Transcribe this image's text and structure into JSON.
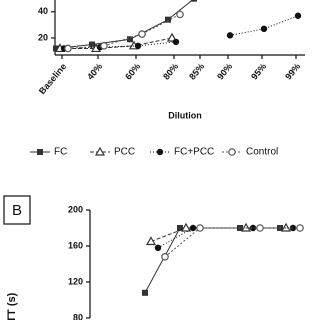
{
  "chart_data": [
    {
      "type": "line",
      "x_label": "Dilution",
      "categories": [
        "Baseline",
        "40%",
        "60%",
        "80%",
        "85%",
        "90%",
        "95%",
        "99%"
      ],
      "ylim": [
        7,
        49
      ],
      "yticks": [
        20,
        40
      ],
      "series": [
        {
          "name": "FC",
          "color": "#333333",
          "marker": "square",
          "dash": "none",
          "values": [
            12,
            15,
            19,
            34,
            50,
            null,
            null,
            null
          ]
        },
        {
          "name": "PCC",
          "color": "#333333",
          "marker": "triangle",
          "dash": "4 2",
          "values": [
            12,
            12,
            14,
            20,
            null,
            null,
            null,
            null
          ]
        },
        {
          "name": "FC+PCC",
          "color": "#111111",
          "marker": "filled-circle",
          "dash": "1 2",
          "values": [
            12,
            13,
            14,
            17,
            null,
            22,
            27,
            37
          ]
        },
        {
          "name": "Control",
          "color": "#555555",
          "marker": "open-circle",
          "dash": "2 2",
          "values": [
            12,
            14,
            23,
            38,
            null,
            null,
            null,
            null
          ]
        }
      ]
    },
    {
      "type": "line",
      "panel_label": "B",
      "y_label": "PTT (s)",
      "categories": [
        null,
        null,
        null,
        null
      ],
      "ylim": [
        80,
        200
      ],
      "yticks": [
        80,
        120,
        160,
        200
      ],
      "series": [
        {
          "name": "FC",
          "color": "#333333",
          "marker": "square",
          "dash": "none",
          "values": [
            108,
            180,
            180,
            180
          ]
        },
        {
          "name": "PCC",
          "color": "#333333",
          "marker": "triangle",
          "dash": "4 2",
          "values": [
            165,
            180,
            180,
            180
          ]
        },
        {
          "name": "FC+PCC",
          "color": "#111111",
          "marker": "filled-circle",
          "dash": "1 2",
          "values": [
            158,
            180,
            180,
            180
          ]
        },
        {
          "name": "Control",
          "color": "#555555",
          "marker": "open-circle",
          "dash": "2 2",
          "values": [
            148,
            180,
            180,
            180
          ]
        }
      ]
    }
  ]
}
